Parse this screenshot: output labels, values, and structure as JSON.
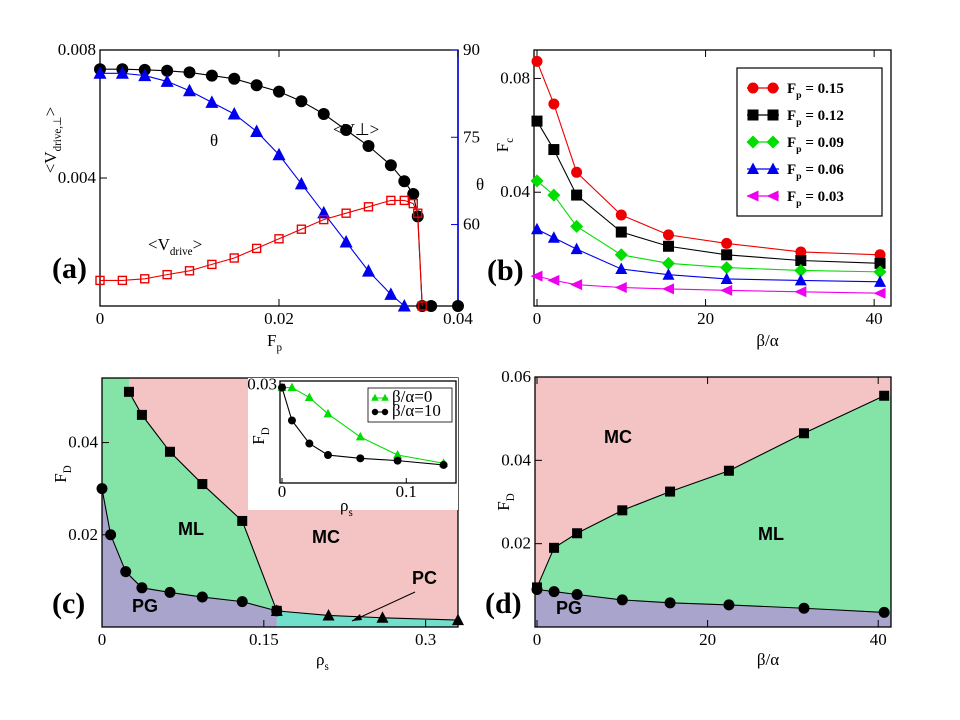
{
  "chart_data": [
    {
      "panel": "(a)",
      "type": "line",
      "xlabel_main": "F",
      "xlabel_sub": "p",
      "ylabel_left_main": "<V",
      "ylabel_left_sub": "drive,⊥",
      "ylabel_left_end": ">",
      "ylabel_right": "θ",
      "xlim": [
        0,
        0.04
      ],
      "ylim": [
        0.0,
        0.008
      ],
      "ylim_right": [
        46,
        90
      ],
      "xticks": [
        "0",
        "0.02",
        "0.04"
      ],
      "xtick_values": [
        0,
        0.02,
        0.04
      ],
      "yticks": [
        "0.004",
        "0.008"
      ],
      "ytick_values": [
        0.004,
        0.008
      ],
      "yticks_right": [
        "60",
        "75",
        "90"
      ],
      "ytick_right_values": [
        60,
        75,
        90
      ],
      "colors": {
        "black": "#000000",
        "blue": "#0000ee",
        "red": "#ee0000"
      },
      "annotations": [
        {
          "text": "<V⊥>",
          "color": "#000000"
        },
        {
          "text": "θ",
          "color": "#0000ee"
        },
        {
          "text_main": "<V",
          "text_sub": "drive",
          "text_end": ">",
          "color": "#ee0000"
        }
      ],
      "series": [
        {
          "label": "<V⊥>",
          "axis": "left",
          "color": "#000000",
          "marker": "circle",
          "x": [
            0,
            0.0025,
            0.005,
            0.0075,
            0.01,
            0.0125,
            0.015,
            0.0175,
            0.02,
            0.0225,
            0.025,
            0.0275,
            0.03,
            0.0325,
            0.034,
            0.035,
            0.0355,
            0.036,
            0.037,
            0.04
          ],
          "y": [
            0.0074,
            0.0074,
            0.00738,
            0.00735,
            0.0073,
            0.0072,
            0.0071,
            0.0069,
            0.0067,
            0.0064,
            0.006,
            0.0055,
            0.005,
            0.0044,
            0.0039,
            0.0035,
            0.0028,
            0.0,
            0.0,
            0.0
          ]
        },
        {
          "label": "θ",
          "axis": "right",
          "color": "#0000ee",
          "marker": "triangle",
          "x": [
            0,
            0.0025,
            0.005,
            0.0075,
            0.01,
            0.0125,
            0.015,
            0.0175,
            0.02,
            0.0225,
            0.025,
            0.0275,
            0.03,
            0.0325,
            0.034
          ],
          "y": [
            86,
            86,
            85.6,
            84.6,
            83,
            81,
            79,
            76,
            72,
            67,
            62,
            57,
            52,
            48,
            46
          ]
        },
        {
          "label": "<V_drive>",
          "axis": "left",
          "color": "#ee0000",
          "marker": "square-open",
          "x": [
            0,
            0.0025,
            0.005,
            0.0075,
            0.01,
            0.0125,
            0.015,
            0.0175,
            0.02,
            0.0225,
            0.025,
            0.0275,
            0.03,
            0.0325,
            0.034,
            0.035,
            0.0355,
            0.036
          ],
          "y": [
            0.0008,
            0.0008,
            0.00085,
            0.00098,
            0.0011,
            0.0013,
            0.0015,
            0.0018,
            0.0021,
            0.0024,
            0.0027,
            0.0029,
            0.0031,
            0.0033,
            0.0033,
            0.0032,
            0.0029,
            0.0
          ]
        }
      ]
    },
    {
      "panel": "(b)",
      "type": "line",
      "xlabel": "β/α",
      "ylabel_main": "F",
      "ylabel_sub": "c",
      "xlim": [
        0,
        42
      ],
      "ylim": [
        0,
        0.09
      ],
      "xticks": [
        "0",
        "20",
        "40"
      ],
      "xtick_values": [
        0,
        20,
        40
      ],
      "yticks": [
        "0.04",
        "0.08"
      ],
      "ytick_values": [
        0.04,
        0.08
      ],
      "series": [
        {
          "name_main": "F",
          "name_sub": "p",
          "name_end": " = 0.15",
          "color": "#ee0000",
          "marker": "circle",
          "x": [
            0,
            2,
            4.7,
            10,
            15.6,
            22.5,
            31.3,
            40.7
          ],
          "y": [
            0.086,
            0.071,
            0.047,
            0.032,
            0.025,
            0.022,
            0.019,
            0.018
          ]
        },
        {
          "name_main": "F",
          "name_sub": "p",
          "name_end": " = 0.12",
          "color": "#000000",
          "marker": "square",
          "x": [
            0,
            2,
            4.7,
            10,
            15.6,
            22.5,
            31.3,
            40.7
          ],
          "y": [
            0.065,
            0.055,
            0.039,
            0.026,
            0.021,
            0.018,
            0.016,
            0.015
          ]
        },
        {
          "name_main": "F",
          "name_sub": "p",
          "name_end": " = 0.09",
          "color": "#00dd00",
          "marker": "diamond",
          "x": [
            0,
            2,
            4.7,
            10,
            15.6,
            22.5,
            31.3,
            40.7
          ],
          "y": [
            0.044,
            0.039,
            0.028,
            0.018,
            0.015,
            0.0135,
            0.0125,
            0.012
          ]
        },
        {
          "name_main": "F",
          "name_sub": "p",
          "name_end": " = 0.06",
          "color": "#0000ee",
          "marker": "triangle",
          "x": [
            0,
            2,
            4.7,
            10,
            15.6,
            22.5,
            31.3,
            40.7
          ],
          "y": [
            0.027,
            0.024,
            0.02,
            0.013,
            0.011,
            0.0095,
            0.009,
            0.0085
          ]
        },
        {
          "name_main": "F",
          "name_sub": "p",
          "name_end": " = 0.03",
          "color": "#ee00ee",
          "marker": "triangle-left",
          "x": [
            0,
            2,
            4.7,
            10,
            15.6,
            22.5,
            31.3,
            40.7
          ],
          "y": [
            0.0105,
            0.009,
            0.0075,
            0.0065,
            0.006,
            0.0055,
            0.005,
            0.0045
          ]
        }
      ],
      "legend_position": "top-right"
    },
    {
      "panel": "(c)",
      "type": "area",
      "xlabel": "ρ",
      "xlabel_sub": "s",
      "ylabel_main": "F",
      "ylabel_sub": "D",
      "xlim": [
        0,
        0.33
      ],
      "ylim": [
        0,
        0.054
      ],
      "xticks": [
        "0",
        "0.15",
        "0.3"
      ],
      "xtick_values": [
        0,
        0.15,
        0.3
      ],
      "yticks": [
        "0.02",
        "0.04"
      ],
      "ytick_values": [
        0.02,
        0.04
      ],
      "regions": [
        "PG",
        "ML",
        "MC",
        "PC"
      ],
      "region_colors": {
        "PG": "#a8a4cc",
        "ML": "#84e4a8",
        "MC": "#f4c4c4",
        "PC": "#70e0cc"
      },
      "series": [
        {
          "label": "upper boundary",
          "marker": "square",
          "color": "#000000",
          "x": [
            0.025,
            0.037,
            0.063,
            0.093,
            0.13,
            0.162
          ],
          "y": [
            0.051,
            0.046,
            0.038,
            0.031,
            0.023,
            0.0035
          ]
        },
        {
          "label": "lower boundary",
          "marker": "circle",
          "color": "#000000",
          "x": [
            0,
            0.008,
            0.022,
            0.037,
            0.063,
            0.093,
            0.13,
            0.162
          ],
          "y": [
            0.03,
            0.02,
            0.012,
            0.0085,
            0.0075,
            0.0065,
            0.0055,
            0.0035
          ]
        },
        {
          "label": "PC boundary",
          "marker": "triangle",
          "color": "#000000",
          "x": [
            0.162,
            0.21,
            0.26,
            0.33
          ],
          "y": [
            0.0035,
            0.0025,
            0.002,
            0.0015
          ]
        }
      ],
      "inset": {
        "type": "line",
        "xlabel": "ρ",
        "xlabel_sub": "s",
        "ylabel_main": "F",
        "ylabel_sub": "D",
        "xlim": [
          0,
          0.14
        ],
        "ylim": [
          0,
          0.031
        ],
        "xticks": [
          "0",
          "0.1"
        ],
        "xtick_values": [
          0,
          0.1
        ],
        "yticks": [
          "0.03"
        ],
        "ytick_values": [
          0.03
        ],
        "series": [
          {
            "name": "β/α=0",
            "color": "#00dd00",
            "marker": "triangle",
            "x": [
              0,
              0.008,
              0.022,
              0.037,
              0.063,
              0.093,
              0.13
            ],
            "y": [
              0.029,
              0.029,
              0.026,
              0.021,
              0.014,
              0.0085,
              0.006
            ]
          },
          {
            "name": "β/α=10",
            "color": "#000000",
            "marker": "circle",
            "x": [
              0,
              0.008,
              0.022,
              0.037,
              0.063,
              0.093,
              0.13
            ],
            "y": [
              0.029,
              0.019,
              0.012,
              0.0085,
              0.0075,
              0.0068,
              0.0055
            ]
          }
        ]
      }
    },
    {
      "panel": "(d)",
      "type": "area",
      "xlabel": "β/α",
      "ylabel_main": "F",
      "ylabel_sub": "D",
      "xlim": [
        0,
        41.5
      ],
      "ylim": [
        0,
        0.06
      ],
      "xticks": [
        "0",
        "20",
        "40"
      ],
      "xtick_values": [
        0,
        20,
        40
      ],
      "yticks": [
        "0.02",
        "0.04",
        "0.06"
      ],
      "ytick_values": [
        0.02,
        0.04,
        0.06
      ],
      "regions": [
        "PG",
        "ML",
        "MC"
      ],
      "region_colors": {
        "PG": "#a8a4cc",
        "ML": "#84e4a8",
        "MC": "#f4c4c4"
      },
      "series": [
        {
          "label": "upper boundary",
          "marker": "square",
          "color": "#000000",
          "x": [
            0,
            2,
            4.7,
            10,
            15.6,
            22.5,
            31.3,
            40.7
          ],
          "y": [
            0.0095,
            0.019,
            0.0225,
            0.028,
            0.0325,
            0.0375,
            0.0465,
            0.0555
          ]
        },
        {
          "label": "lower boundary",
          "marker": "circle",
          "color": "#000000",
          "x": [
            0,
            2,
            4.7,
            10,
            15.6,
            22.5,
            31.3,
            40.7
          ],
          "y": [
            0.009,
            0.0085,
            0.0078,
            0.0065,
            0.0058,
            0.0053,
            0.0045,
            0.0035
          ]
        }
      ]
    }
  ]
}
